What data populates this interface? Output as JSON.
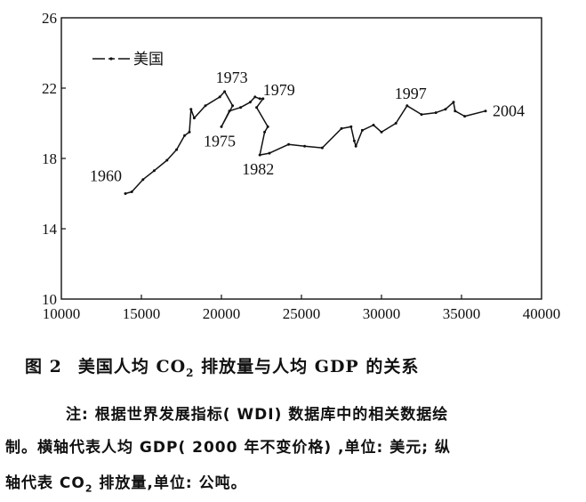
{
  "chart_data": {
    "type": "line",
    "xlim": [
      10000,
      40000
    ],
    "ylim": [
      10,
      26
    ],
    "x_ticks": [
      "10000",
      "15000",
      "20000",
      "25000",
      "30000",
      "35000",
      "40000"
    ],
    "y_ticks": [
      "10",
      "14",
      "18",
      "22",
      "26"
    ],
    "legend": {
      "label": "美国",
      "position": "top-left"
    },
    "series": [
      {
        "name": "美国",
        "color": "#111111",
        "points": [
          [
            14000,
            16.0
          ],
          [
            14400,
            16.1
          ],
          [
            15100,
            16.8
          ],
          [
            15800,
            17.3
          ],
          [
            16600,
            17.9
          ],
          [
            17200,
            18.5
          ],
          [
            17700,
            19.3
          ],
          [
            18000,
            19.5
          ],
          [
            18100,
            20.8
          ],
          [
            18300,
            20.3
          ],
          [
            19000,
            21.0
          ],
          [
            19900,
            21.5
          ],
          [
            20200,
            21.8
          ],
          [
            20700,
            21.0
          ],
          [
            20000,
            19.8
          ],
          [
            20500,
            20.7
          ],
          [
            21200,
            20.9
          ],
          [
            21800,
            21.2
          ],
          [
            22100,
            21.5
          ],
          [
            22400,
            21.4
          ],
          [
            22600,
            21.4
          ],
          [
            22200,
            20.9
          ],
          [
            22900,
            19.8
          ],
          [
            22700,
            19.5
          ],
          [
            22400,
            18.2
          ],
          [
            23000,
            18.3
          ],
          [
            24200,
            18.8
          ],
          [
            25200,
            18.7
          ],
          [
            26300,
            18.6
          ],
          [
            27500,
            19.7
          ],
          [
            28100,
            19.8
          ],
          [
            28300,
            19.0
          ],
          [
            28400,
            18.7
          ],
          [
            28800,
            19.6
          ],
          [
            29500,
            19.9
          ],
          [
            30000,
            19.5
          ],
          [
            30900,
            20.0
          ],
          [
            31600,
            21.0
          ],
          [
            32500,
            20.5
          ],
          [
            33400,
            20.6
          ],
          [
            34000,
            20.8
          ],
          [
            34500,
            21.2
          ],
          [
            34600,
            20.7
          ],
          [
            35200,
            20.4
          ],
          [
            36500,
            20.7
          ]
        ]
      }
    ],
    "annotations": [
      {
        "text": "1960",
        "x": 14000,
        "y": 16.0
      },
      {
        "text": "1973",
        "x": 20200,
        "y": 21.8
      },
      {
        "text": "1975",
        "x": 20000,
        "y": 19.8
      },
      {
        "text": "1979",
        "x": 22600,
        "y": 21.4
      },
      {
        "text": "1982",
        "x": 22400,
        "y": 18.2
      },
      {
        "text": "1997",
        "x": 31600,
        "y": 21.0
      },
      {
        "text": "2004",
        "x": 36500,
        "y": 20.7
      }
    ]
  },
  "caption": {
    "figure_label": "图 2",
    "title_pre": "美国人均 CO",
    "title_sub": "2",
    "title_post": " 排放量与人均 GDP 的关系",
    "note_line1": "注: 根据世界发展指标( WDI) 数据库中的相关数据绘",
    "note_line2": "制。横轴代表人均 GDP( 2000 年不变价格) ,单位: 美元; 纵",
    "note_line3_pre": "轴代表 CO",
    "note_line3_sub": "2",
    "note_line3_post": " 排放量,单位: 公吨。"
  }
}
